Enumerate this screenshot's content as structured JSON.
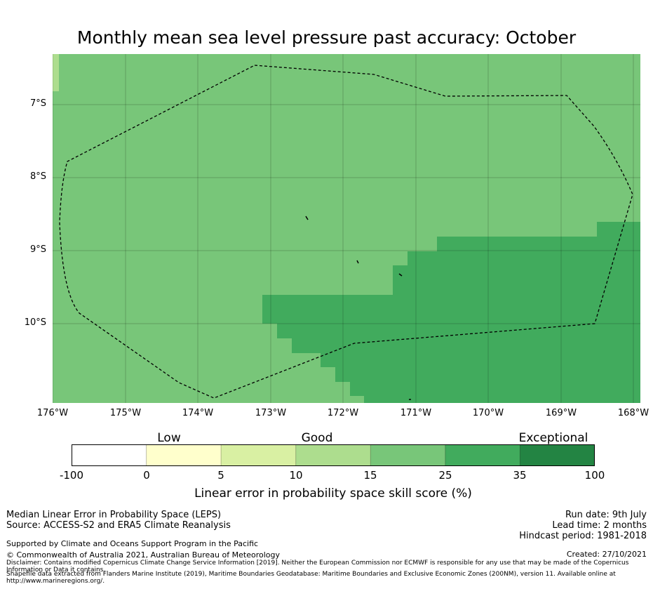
{
  "title": "Monthly mean sea level pressure past accuracy: October",
  "map": {
    "lat_labels": [
      "7°S",
      "8°S",
      "9°S",
      "10°S"
    ],
    "lon_labels": [
      "176°W",
      "175°W",
      "174°W",
      "173°W",
      "172°W",
      "171°W",
      "170°W",
      "169°W",
      "168°W"
    ],
    "region_colors": {
      "good_15_25": "#78c679",
      "good_25_35": "#41ab5d",
      "good_10_15": "#addd8e"
    },
    "boundary_style": "dashed black line"
  },
  "colorbar": {
    "categories": [
      "Low",
      "Good",
      "Exceptional"
    ],
    "ticks": [
      "-100",
      "0",
      "5",
      "10",
      "15",
      "25",
      "35",
      "100"
    ],
    "colors": [
      "#ffffff",
      "#ffffcc",
      "#d9f0a3",
      "#addd8e",
      "#78c679",
      "#41ab5d",
      "#238443"
    ],
    "label": "Linear error in probability space skill score (%)"
  },
  "footer": {
    "method": "Median Linear Error in Probability Space (LEPS)",
    "source": "Source: ACCESS-S2 and ERA5 Climate Reanalysis",
    "support": "Supported by Climate and Oceans Support Program in the Pacific",
    "copyright": "© Commonwealth of Australia 2021, Australian Bureau of Meteorology",
    "disclaimer": "Disclaimer: Contains modified Copernicus Climate Change Service Information [2019]. Neither the European Commission nor ECMWF is responsible for any use that may be made of the Copernicus Information or Data it contains.",
    "shapefile": "Shapefile data extracted from Flanders Marine Institute (2019), Maritime Boundaries Geodatabase: Maritime Boundaries and Exclusive Economic Zones (200NM), version 11. Available online at http://www.marineregions.org/.",
    "run_date": "Run date: 9th July",
    "lead_time": "Lead time: 2 months",
    "hindcast": "Hindcast period: 1981-2018",
    "created": "Created: 27/10/2021"
  }
}
